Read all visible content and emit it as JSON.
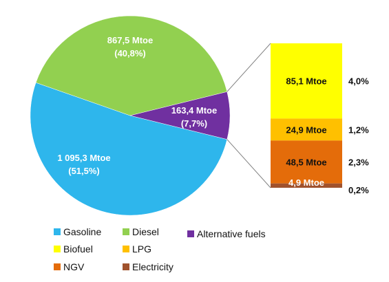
{
  "chart_data": {
    "type": "pie",
    "slices": [
      {
        "name": "Gasoline",
        "value": 1095.3,
        "label": "1 095,3 Mtoe",
        "percent_label": "(51,5%)",
        "color": "#2eb6ec"
      },
      {
        "name": "Diesel",
        "value": 867.5,
        "label": "867,5 Mtoe",
        "percent_label": "(40,8%)",
        "color": "#92d050"
      },
      {
        "name": "Alternative fuels",
        "value": 163.4,
        "label": "163,4 Mtoe",
        "percent_label": "(7,7%)",
        "color": "#7030a0"
      }
    ],
    "breakdown": {
      "of": "Alternative fuels",
      "type": "stacked-bar",
      "segments": [
        {
          "name": "Biofuel",
          "value": 85.1,
          "label": "85,1 Mtoe",
          "percent_label": "4,0%",
          "color": "#ffff00"
        },
        {
          "name": "LPG",
          "value": 24.9,
          "label": "24,9 Mtoe",
          "percent_label": "1,2%",
          "color": "#ffc000"
        },
        {
          "name": "NGV",
          "value": 48.5,
          "label": "48,5 Mtoe",
          "percent_label": "2,3%",
          "color": "#e46c0a"
        },
        {
          "name": "Electricity",
          "value": 4.9,
          "label": "4,9 Mtoe",
          "percent_label": "0,2%",
          "color": "#a0522d"
        }
      ]
    },
    "legend": {
      "placement": "bottom",
      "entries": [
        {
          "name": "Gasoline",
          "color": "#2eb6ec"
        },
        {
          "name": "Diesel",
          "color": "#92d050"
        },
        {
          "name": "Alternative fuels",
          "color": "#7030a0"
        },
        {
          "name": "Biofuel",
          "color": "#ffff00"
        },
        {
          "name": "LPG",
          "color": "#ffc000"
        },
        {
          "name": "NGV",
          "color": "#e46c0a"
        },
        {
          "name": "Electricity",
          "color": "#a0522d"
        }
      ]
    }
  }
}
